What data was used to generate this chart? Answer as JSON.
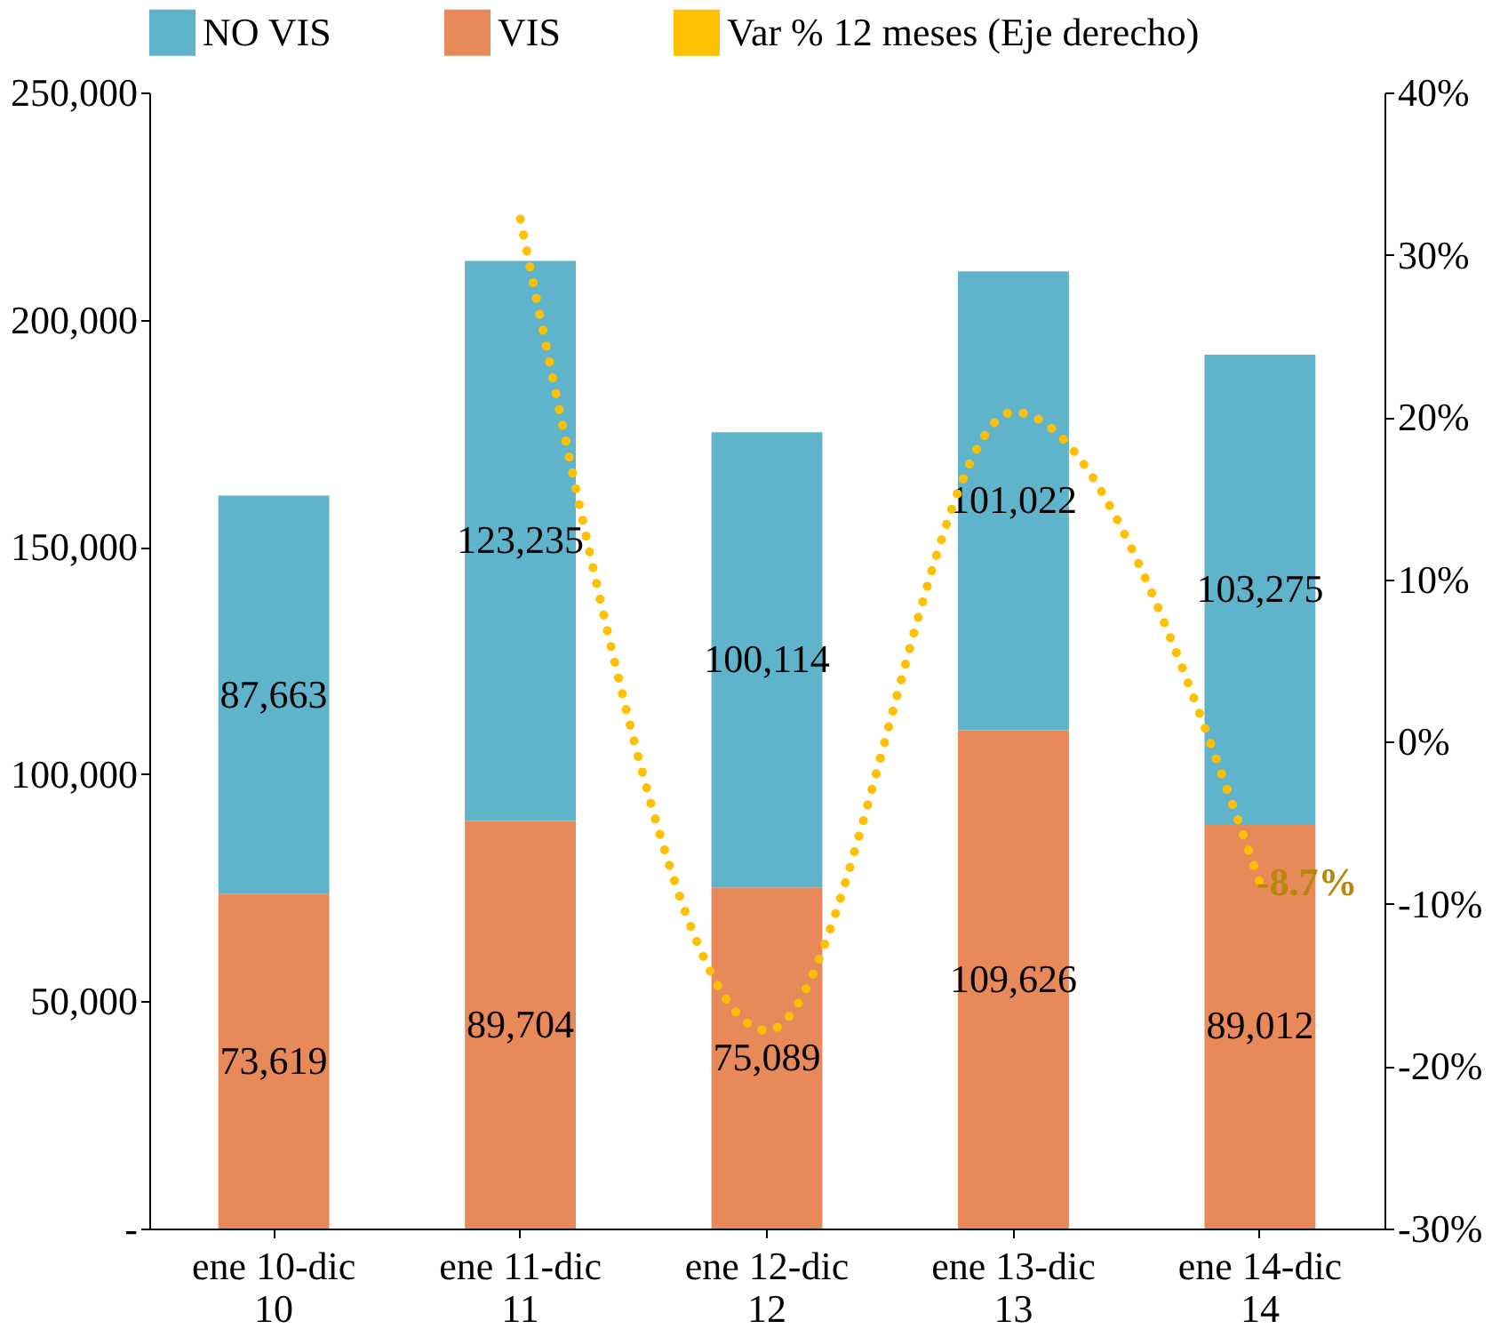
{
  "chart_data": {
    "type": "bar",
    "stacked": true,
    "categories": [
      "ene 10-dic 10",
      "ene 11-dic 11",
      "ene 12-dic 12",
      "ene 13-dic 13",
      "ene 14-dic 14"
    ],
    "series": [
      {
        "name": "VIS",
        "color": "#e8895a",
        "values": [
          73619,
          89704,
          75089,
          109626,
          89012
        ],
        "value_labels": [
          "73,619",
          "89,704",
          "75,089",
          "109,626",
          "89,012"
        ]
      },
      {
        "name": "NO VIS",
        "color": "#5fb4cb",
        "values": [
          87663,
          123235,
          100114,
          101022,
          103275
        ],
        "value_labels": [
          "87,663",
          "123,235",
          "100,114",
          "101,022",
          "103,275"
        ]
      },
      {
        "name": "Var % 12 meses (Eje derecho)",
        "type": "line",
        "axis": "y2",
        "color": "#ffc000",
        "line_style": "dotted",
        "values": [
          null,
          32.2,
          -17.8,
          20.3,
          -8.7
        ],
        "value_labels": [
          null,
          null,
          null,
          null,
          "-8.7%"
        ]
      }
    ],
    "ylim": [
      0,
      250000
    ],
    "yticks": [
      {
        "value": 0,
        "label": "-"
      },
      {
        "value": 50000,
        "label": "50,000"
      },
      {
        "value": 100000,
        "label": "100,000"
      },
      {
        "value": 150000,
        "label": "150,000"
      },
      {
        "value": 200000,
        "label": "200,000"
      },
      {
        "value": 250000,
        "label": "250,000"
      }
    ],
    "y2lim": [
      -30,
      40
    ],
    "y2ticks": [
      {
        "value": -30,
        "label": "-30%"
      },
      {
        "value": -20,
        "label": "-20%"
      },
      {
        "value": -10,
        "label": "-10%"
      },
      {
        "value": 0,
        "label": "0%"
      },
      {
        "value": 10,
        "label": "10%"
      },
      {
        "value": 20,
        "label": "20%"
      },
      {
        "value": 30,
        "label": "30%"
      },
      {
        "value": 40,
        "label": "40%"
      }
    ],
    "grid": false,
    "legend": "top"
  }
}
